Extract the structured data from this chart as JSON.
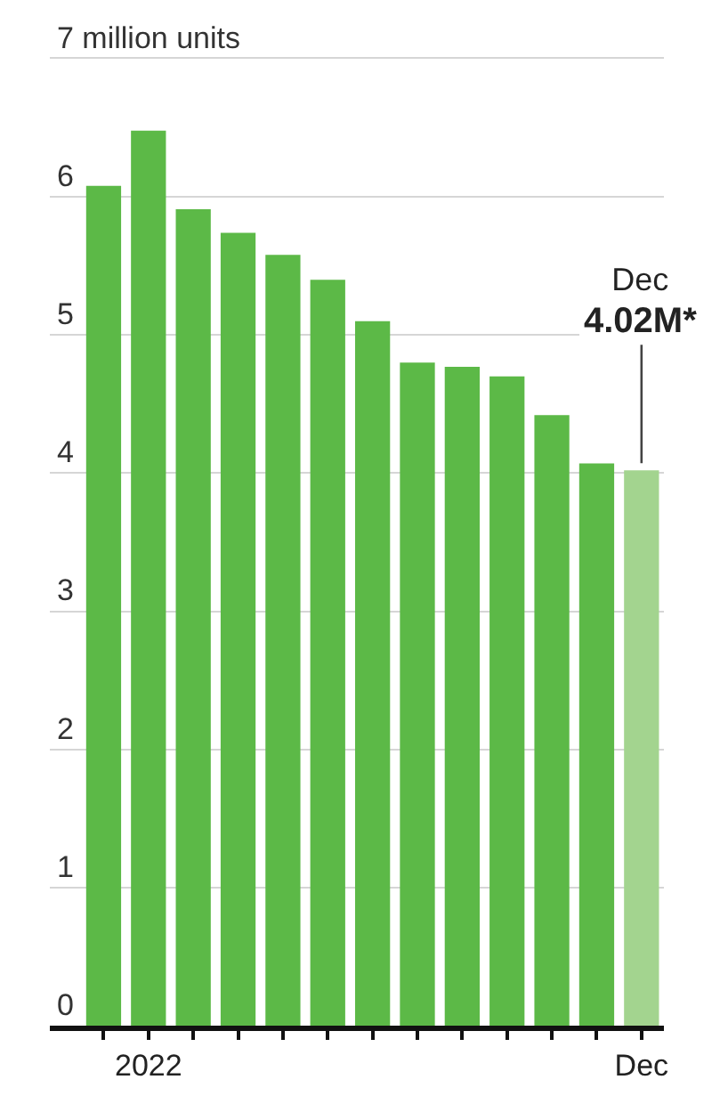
{
  "chart_data": {
    "type": "bar",
    "categories": [
      null,
      "2022",
      null,
      null,
      null,
      null,
      null,
      null,
      null,
      null,
      null,
      null,
      "Dec"
    ],
    "values": [
      6.08,
      6.48,
      5.91,
      5.74,
      5.58,
      5.4,
      5.1,
      4.8,
      4.77,
      4.7,
      4.42,
      4.07,
      4.02
    ],
    "colors": [
      "#5cb947",
      "#5cb947",
      "#5cb947",
      "#5cb947",
      "#5cb947",
      "#5cb947",
      "#5cb947",
      "#5cb947",
      "#5cb947",
      "#5cb947",
      "#5cb947",
      "#5cb947",
      "#a3d48f"
    ],
    "ylim": [
      0,
      7
    ],
    "yticks": [
      0,
      1,
      2,
      3,
      4,
      5,
      6,
      {
        "value": 7,
        "label": "7 million units"
      }
    ],
    "grid": "y",
    "annotations": [
      {
        "text": "Dec\n4.02M*",
        "x": "Dec",
        "y": 4.02
      }
    ]
  }
}
